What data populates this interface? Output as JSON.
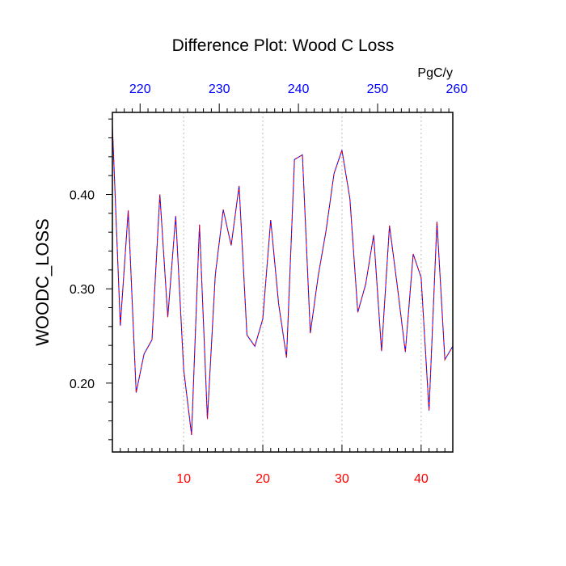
{
  "chart_data": {
    "type": "line",
    "title": "Difference Plot: Wood C Loss",
    "ylabel": "WOODC_LOSS",
    "units_label": "PgC/y",
    "xlim": [
      1,
      44
    ],
    "ylim": [
      0.127,
      0.487
    ],
    "bottom_axis": {
      "ticks": [
        10,
        20,
        30,
        40
      ],
      "labels": [
        "10",
        "20",
        "30",
        "40"
      ],
      "color": "#ff0000"
    },
    "top_axis": {
      "xlim": [
        216.5,
        259.5
      ],
      "ticks": [
        220,
        230,
        240,
        250,
        260
      ],
      "labels": [
        "220",
        "230",
        "240",
        "250",
        "260"
      ],
      "color": "#0000ff"
    },
    "yticks": [
      0.2,
      0.3,
      0.4
    ],
    "yticklabels": [
      "0.20",
      "0.30",
      "0.40"
    ],
    "grid": "vertical dotted lines at bottom-axis ticks",
    "series": [
      {
        "color": "#0000ff",
        "overlay_color": "#ff0000",
        "dash": "dashed",
        "x": [
          1,
          2,
          3,
          4,
          5,
          6,
          7,
          8,
          9,
          10,
          11,
          12,
          13,
          14,
          15,
          16,
          17,
          18,
          19,
          20,
          21,
          22,
          23,
          24,
          25,
          26,
          27,
          28,
          29,
          30,
          31,
          32,
          33,
          34,
          35,
          36,
          37,
          38,
          39,
          40,
          41,
          42,
          43,
          44
        ],
        "y": [
          0.473,
          0.261,
          0.383,
          0.19,
          0.231,
          0.246,
          0.4,
          0.27,
          0.377,
          0.215,
          0.145,
          0.368,
          0.162,
          0.315,
          0.384,
          0.346,
          0.409,
          0.251,
          0.239,
          0.268,
          0.373,
          0.284,
          0.227,
          0.437,
          0.442,
          0.253,
          0.314,
          0.362,
          0.422,
          0.447,
          0.396,
          0.275,
          0.305,
          0.357,
          0.234,
          0.367,
          0.302,
          0.233,
          0.337,
          0.312,
          0.171,
          0.371,
          0.225,
          0.239
        ]
      }
    ]
  }
}
